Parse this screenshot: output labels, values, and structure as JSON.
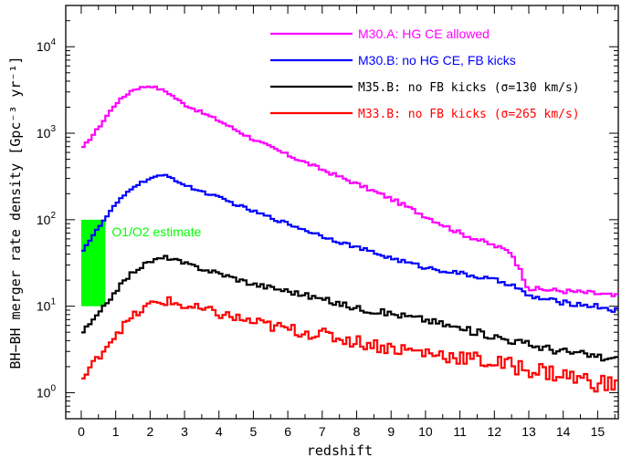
{
  "chart_data": {
    "type": "line",
    "xlabel": "redshift",
    "ylabel": "BH−BH merger rate density [Gpc⁻³ yr⁻¹]",
    "xlim": [
      -0.45,
      15.6
    ],
    "ylim": [
      0.5,
      30000
    ],
    "yscale": "log",
    "x_ticks": [
      "0",
      "1",
      "2",
      "3",
      "4",
      "5",
      "6",
      "7",
      "8",
      "9",
      "10",
      "11",
      "12",
      "13",
      "14",
      "15"
    ],
    "y_ticks": [
      {
        "base": "10",
        "exp": "0",
        "value": 1
      },
      {
        "base": "10",
        "exp": "1",
        "value": 10
      },
      {
        "base": "10",
        "exp": "2",
        "value": 100
      },
      {
        "base": "10",
        "exp": "3",
        "value": 1000
      },
      {
        "base": "10",
        "exp": "4",
        "value": 10000
      }
    ],
    "legend_placement": "top-right",
    "series": [
      {
        "name": "M30.A: HG CE allowed",
        "color": "#ff00ff",
        "x": [
          0,
          0.5,
          1.0,
          1.5,
          2.0,
          2.5,
          3.0,
          4.0,
          5.0,
          6.0,
          7.0,
          8.0,
          9.0,
          10.0,
          11.0,
          12.0,
          12.5,
          13.0,
          14.0,
          15.0,
          15.5
        ],
        "y": [
          640,
          1150,
          2200,
          3200,
          3550,
          3000,
          2150,
          1400,
          850,
          560,
          380,
          260,
          175,
          110,
          70,
          50,
          42,
          16,
          15,
          14,
          13
        ]
      },
      {
        "name": "M30.B: no HG CE, FB kicks",
        "color": "#0000ff",
        "x": [
          0,
          0.5,
          1.0,
          1.5,
          2.0,
          2.5,
          3.0,
          4.0,
          5.0,
          6.0,
          7.0,
          8.0,
          9.0,
          10.0,
          11.0,
          12.0,
          12.5,
          13.0,
          14.0,
          15.0,
          15.5
        ],
        "y": [
          42,
          80,
          150,
          240,
          300,
          330,
          250,
          180,
          125,
          90,
          65,
          48,
          36,
          28,
          24,
          20,
          18,
          13,
          11,
          10,
          9
        ]
      },
      {
        "name": "M35.B: no FB kicks (σ=130 km/s)",
        "color": "#000000",
        "x": [
          0,
          0.5,
          1.0,
          1.5,
          2.0,
          2.5,
          3.0,
          4.0,
          5.0,
          6.0,
          7.0,
          8.0,
          9.0,
          10.0,
          11.0,
          12.0,
          13.0,
          14.0,
          15.0,
          15.5
        ],
        "y": [
          4.8,
          8.0,
          15,
          25,
          33,
          37,
          31,
          24,
          18,
          15,
          12,
          9.5,
          8.2,
          7.0,
          5.5,
          4.5,
          3.6,
          3.0,
          2.6,
          2.4
        ]
      },
      {
        "name": "M33.B: no FB kicks (σ=265 km/s)",
        "color": "#ff0000",
        "x": [
          0,
          0.5,
          1.0,
          1.5,
          2.0,
          2.5,
          3.0,
          4.0,
          5.0,
          6.0,
          7.0,
          8.0,
          9.0,
          10.0,
          11.0,
          12.0,
          13.0,
          14.0,
          15.0,
          15.5
        ],
        "y": [
          1.35,
          2.6,
          4.8,
          7.5,
          10.5,
          11.5,
          10,
          8.2,
          6.5,
          5.4,
          4.7,
          3.9,
          3.3,
          2.9,
          2.6,
          2.2,
          1.9,
          1.6,
          1.3,
          1.2
        ]
      }
    ],
    "annotations": [
      {
        "text": "O1/O2 estimate",
        "color": "#00ff00",
        "x_range": [
          0,
          0.7
        ],
        "y_range": [
          10,
          100
        ]
      }
    ]
  }
}
